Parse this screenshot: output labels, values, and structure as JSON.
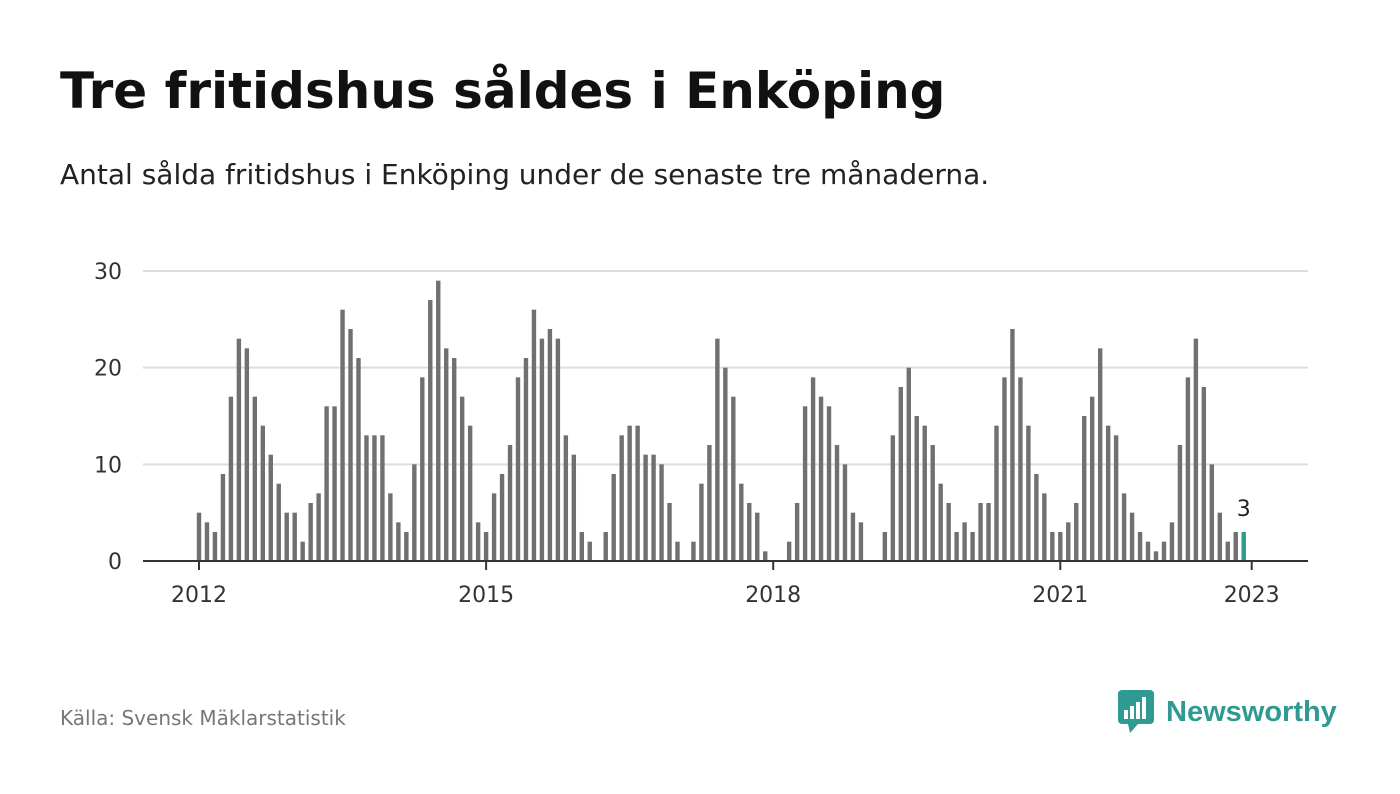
{
  "header": {
    "title": "Tre fritidshus såldes i Enköping",
    "subtitle": "Antal sålda fritidshus i Enköping under de senaste tre månaderna."
  },
  "chart_data": {
    "type": "bar",
    "title": "Tre fritidshus såldes i Enköping",
    "subtitle": "Antal sålda fritidshus i Enköping under de senaste tre månaderna.",
    "xlabel": "",
    "ylabel": "",
    "ylim": [
      0,
      30
    ],
    "yticks": [
      0,
      10,
      20,
      30
    ],
    "xticks": [
      "2012",
      "2015",
      "2018",
      "2021",
      "2023"
    ],
    "grid": true,
    "start_month": "2012-01",
    "values": [
      5,
      4,
      3,
      9,
      17,
      23,
      22,
      17,
      14,
      11,
      8,
      5,
      5,
      2,
      6,
      7,
      16,
      16,
      26,
      24,
      21,
      13,
      13,
      13,
      7,
      4,
      3,
      10,
      19,
      27,
      29,
      22,
      21,
      17,
      14,
      4,
      3,
      7,
      9,
      12,
      19,
      21,
      26,
      23,
      24,
      23,
      13,
      11,
      3,
      2,
      0,
      3,
      9,
      13,
      14,
      14,
      11,
      11,
      10,
      6,
      2,
      0,
      2,
      8,
      12,
      23,
      20,
      17,
      8,
      6,
      5,
      1,
      0,
      0,
      2,
      6,
      16,
      19,
      17,
      16,
      12,
      10,
      5,
      4,
      0,
      0,
      3,
      13,
      18,
      20,
      15,
      14,
      12,
      8,
      6,
      3,
      4,
      3,
      6,
      6,
      14,
      19,
      24,
      19,
      14,
      9,
      7,
      3,
      3,
      4,
      6,
      15,
      17,
      22,
      14,
      13,
      7,
      5,
      3,
      2,
      1,
      2,
      4,
      12,
      19,
      23,
      18,
      10,
      5,
      2,
      3,
      3
    ],
    "highlight_last": true,
    "annotation": "3",
    "colors": {
      "bar": "#707070",
      "highlight": "#2a9d8f",
      "grid": "#dddddd",
      "axis": "#333333"
    }
  },
  "footer": {
    "source": "Källa: Svensk Mäklarstatistik",
    "brand": "Newsworthy",
    "brand_color": "#2e9a91",
    "brand_icon": "bar-chart-speech-icon"
  }
}
